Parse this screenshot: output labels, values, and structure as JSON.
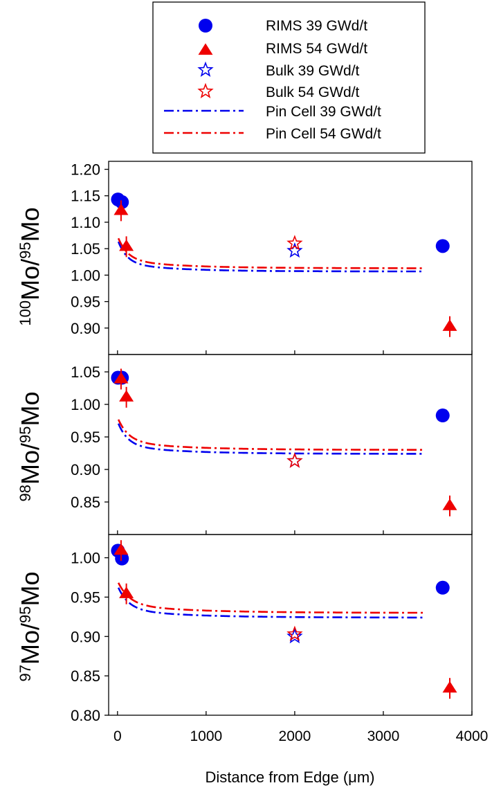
{
  "legend": {
    "placement": "top",
    "entries": [
      {
        "label": "RIMS 39 GWd/t",
        "marker": "circle",
        "color": "#0000ee"
      },
      {
        "label": "RIMS 54 GWd/t",
        "marker": "triangle",
        "color": "#ee0000"
      },
      {
        "label": "Bulk 39 GWd/t",
        "marker": "star-open",
        "color": "#0000ee"
      },
      {
        "label": "Bulk 54 GWd/t",
        "marker": "star-open",
        "color": "#ee0000"
      },
      {
        "label": "Pin Cell 39 GWd/t",
        "marker": "dash-dot",
        "color": "#0000ee"
      },
      {
        "label": "Pin Cell 54 GWd/t",
        "marker": "dash-dot",
        "color": "#ee0000"
      }
    ]
  },
  "xaxis": {
    "label": "Distance from Edge (μm)",
    "range": [
      -100,
      4000
    ],
    "ticks": [
      0,
      1000,
      2000,
      3000,
      4000
    ],
    "tick_labels": [
      "0",
      "1000",
      "2000",
      "3000",
      "4000"
    ]
  },
  "chart_data": [
    {
      "type": "scatter",
      "panel": "top",
      "ylabel": {
        "sup1": "100",
        "base1": "Mo/",
        "sup2": "95",
        "base2": "Mo"
      },
      "ylim": [
        0.85,
        1.2
      ],
      "yticks": [
        0.9,
        0.95,
        1.0,
        1.05,
        1.1,
        1.15,
        1.2
      ],
      "ytick_labels": [
        "0.90",
        "0.95",
        "1.00",
        "1.05",
        "1.10",
        "1.15",
        "1.20"
      ],
      "series": [
        {
          "name": "RIMS 39 GWd/t",
          "kind": "circle",
          "color": "#0000ee",
          "points": [
            [
              5,
              1.143
            ],
            [
              50,
              1.138
            ],
            [
              3670,
              1.055
            ]
          ]
        },
        {
          "name": "RIMS 54 GWd/t",
          "kind": "triangle",
          "color": "#ee0000",
          "points": [
            [
              40,
              1.123
            ],
            [
              100,
              1.055
            ],
            [
              3750,
              0.904
            ]
          ]
        },
        {
          "name": "Bulk 39 GWd/t",
          "kind": "star",
          "color": "#0000ee",
          "points": [
            [
              2000,
              1.046
            ]
          ]
        },
        {
          "name": "Bulk 54 GWd/t",
          "kind": "star",
          "color": "#ee0000",
          "points": [
            [
              2000,
              1.06
            ]
          ]
        },
        {
          "name": "Pin Cell 39 GWd/t",
          "kind": "line",
          "color": "#0000ee",
          "curve": {
            "x0": 10,
            "x1": 3450,
            "asym": 1.007,
            "amp": 0.045,
            "tau": 100
          }
        },
        {
          "name": "Pin Cell 54 GWd/t",
          "kind": "line",
          "color": "#ee0000",
          "curve": {
            "x0": 10,
            "x1": 3450,
            "asym": 1.013,
            "amp": 0.045,
            "tau": 110
          }
        }
      ]
    },
    {
      "type": "scatter",
      "panel": "middle",
      "ylabel": {
        "sup1": "98",
        "base1": "Mo/",
        "sup2": "95",
        "base2": "Mo"
      },
      "ylim": [
        0.8,
        1.08
      ],
      "yticks": [
        0.85,
        0.9,
        0.95,
        1.0,
        1.05
      ],
      "ytick_labels": [
        "0.85",
        "0.90",
        "0.95",
        "1.00",
        "1.05"
      ],
      "series": [
        {
          "name": "RIMS 39 GWd/t",
          "kind": "circle",
          "color": "#0000ee",
          "points": [
            [
              5,
              1.041
            ],
            [
              50,
              1.041
            ],
            [
              3670,
              0.983
            ]
          ]
        },
        {
          "name": "RIMS 54 GWd/t",
          "kind": "triangle",
          "color": "#ee0000",
          "points": [
            [
              40,
              1.04
            ],
            [
              100,
              1.012
            ],
            [
              3750,
              0.845
            ]
          ]
        },
        {
          "name": "Bulk 39 GWd/t",
          "kind": "star",
          "color": "#0000ee",
          "points": [
            [
              2000,
              0.913
            ]
          ]
        },
        {
          "name": "Bulk 54 GWd/t",
          "kind": "star",
          "color": "#ee0000",
          "points": [
            [
              2000,
              0.913
            ]
          ]
        },
        {
          "name": "Pin Cell 39 GWd/t",
          "kind": "line",
          "color": "#0000ee",
          "curve": {
            "x0": 10,
            "x1": 3450,
            "asym": 0.924,
            "amp": 0.037,
            "tau": 110
          }
        },
        {
          "name": "Pin Cell 54 GWd/t",
          "kind": "line",
          "color": "#ee0000",
          "curve": {
            "x0": 10,
            "x1": 3450,
            "asym": 0.93,
            "amp": 0.037,
            "tau": 120
          }
        }
      ]
    },
    {
      "type": "scatter",
      "panel": "bottom",
      "ylabel": {
        "sup1": "97",
        "base1": "Mo/",
        "sup2": "95",
        "base2": "Mo"
      },
      "ylim": [
        0.8,
        1.03
      ],
      "yticks": [
        0.8,
        0.85,
        0.9,
        0.95,
        1.0
      ],
      "ytick_labels": [
        "0.80",
        "0.85",
        "0.90",
        "0.95",
        "1.00"
      ],
      "series": [
        {
          "name": "RIMS 39 GWd/t",
          "kind": "circle",
          "color": "#0000ee",
          "points": [
            [
              5,
              1.009
            ],
            [
              50,
              0.999
            ],
            [
              3670,
              0.962
            ]
          ]
        },
        {
          "name": "RIMS 54 GWd/t",
          "kind": "triangle",
          "color": "#ee0000",
          "points": [
            [
              40,
              1.01
            ],
            [
              100,
              0.955
            ],
            [
              3750,
              0.835
            ]
          ]
        },
        {
          "name": "Bulk 39 GWd/t",
          "kind": "star",
          "color": "#0000ee",
          "points": [
            [
              2000,
              0.9
            ]
          ]
        },
        {
          "name": "Bulk 54 GWd/t",
          "kind": "star",
          "color": "#ee0000",
          "points": [
            [
              2000,
              0.903
            ]
          ]
        },
        {
          "name": "Pin Cell 39 GWd/t",
          "kind": "line",
          "color": "#0000ee",
          "curve": {
            "x0": 10,
            "x1": 3450,
            "asym": 0.924,
            "amp": 0.03,
            "tau": 120
          }
        },
        {
          "name": "Pin Cell 54 GWd/t",
          "kind": "line",
          "color": "#ee0000",
          "curve": {
            "x0": 10,
            "x1": 3450,
            "asym": 0.93,
            "amp": 0.03,
            "tau": 130
          }
        }
      ]
    }
  ]
}
